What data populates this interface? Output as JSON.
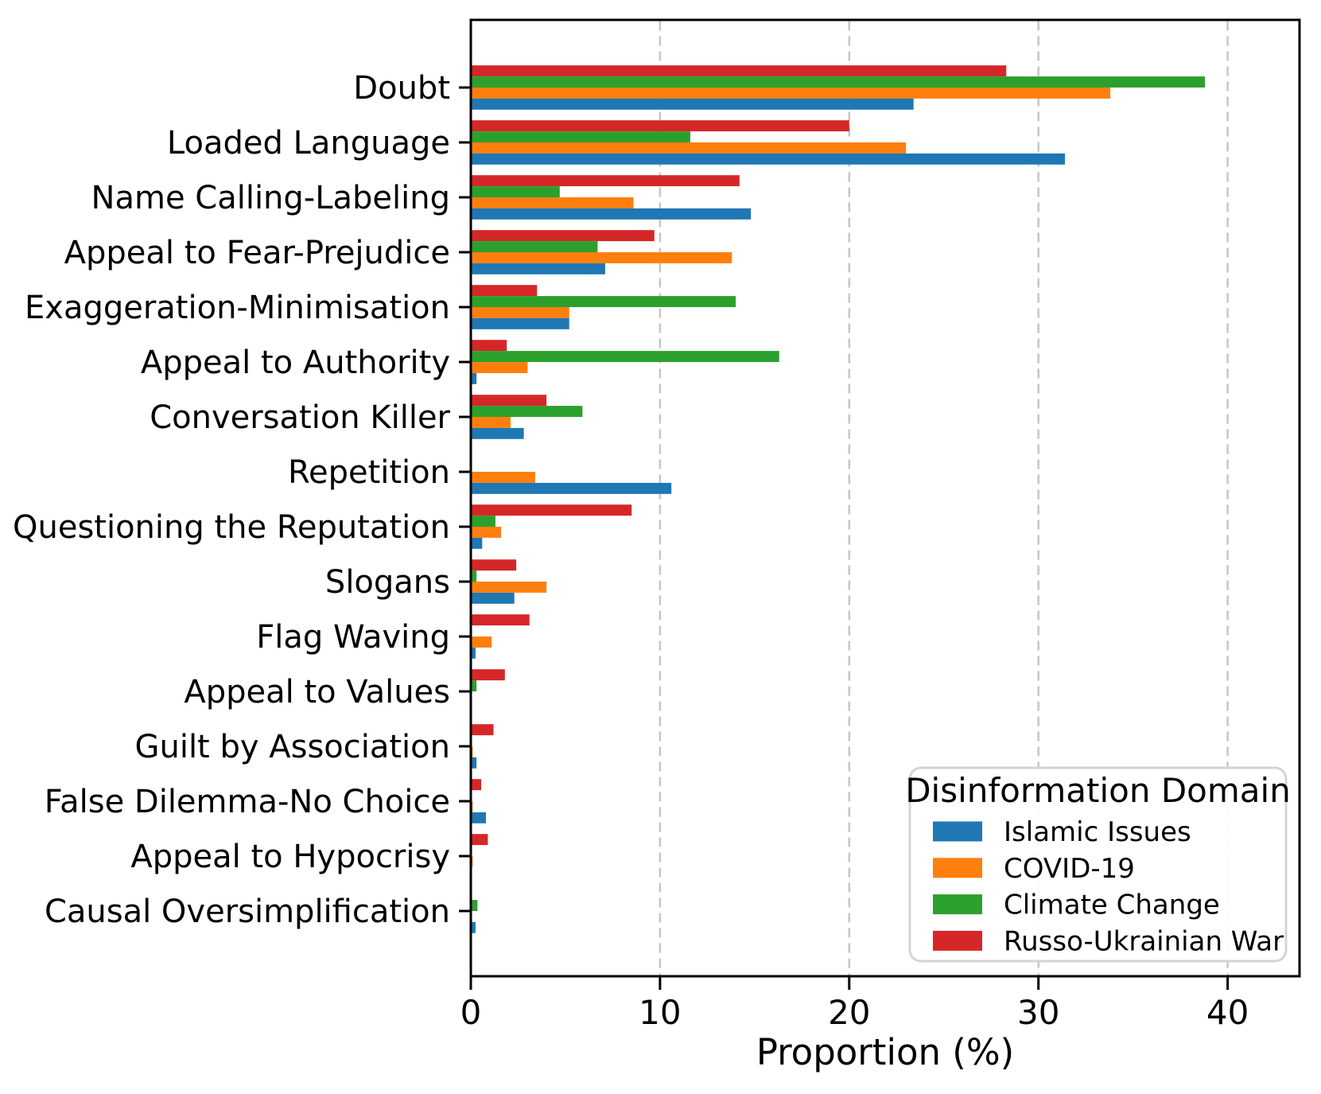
{
  "figure": {
    "background": "#ffffff"
  },
  "chart_data": {
    "type": "bar",
    "orientation": "horizontal",
    "title": "",
    "xlabel": "Proportion (%)",
    "ylabel": "",
    "xlim": [
      0,
      43.8
    ],
    "xticks": [
      0,
      10,
      20,
      30,
      40
    ],
    "grid": "vertical-dashed",
    "grid_color": "#c6c6c6",
    "categories": [
      "Doubt",
      "Loaded Language",
      "Name Calling-Labeling",
      "Appeal to Fear-Prejudice",
      "Exaggeration-Minimisation",
      "Appeal to Authority",
      "Conversation Killer",
      "Repetition",
      "Questioning the Reputation",
      "Slogans",
      "Flag Waving",
      "Appeal to Values",
      "Guilt by Association",
      "False Dilemma-No Choice",
      "Appeal to Hypocrisy",
      "Causal Oversimplification"
    ],
    "series": [
      {
        "name": "Islamic Issues",
        "color": "#1f77b4",
        "values": [
          23.4,
          31.4,
          14.8,
          7.1,
          5.2,
          0.3,
          2.8,
          10.6,
          0.6,
          2.3,
          0.25,
          0,
          0.3,
          0.8,
          0,
          0.25
        ]
      },
      {
        "name": "COVID-19",
        "color": "#ff7f0e",
        "values": [
          33.8,
          23.0,
          8.6,
          13.8,
          5.2,
          3.0,
          2.1,
          3.4,
          1.6,
          4.0,
          1.1,
          0,
          0.1,
          0.1,
          0.1,
          0
        ]
      },
      {
        "name": "Climate Change",
        "color": "#2ca02c",
        "values": [
          38.8,
          11.6,
          4.7,
          6.7,
          14.0,
          16.3,
          5.9,
          0,
          1.3,
          0.3,
          0,
          0.3,
          0,
          0,
          0,
          0.35
        ]
      },
      {
        "name": "Russo-Ukrainian War",
        "color": "#d62728",
        "values": [
          28.3,
          20.0,
          14.2,
          9.7,
          3.5,
          1.9,
          4.0,
          0,
          8.5,
          2.4,
          3.1,
          1.8,
          1.2,
          0.55,
          0.9,
          0
        ]
      }
    ],
    "bar_order_top_to_bottom": [
      "Russo-Ukrainian War",
      "Climate Change",
      "COVID-19",
      "Islamic Issues"
    ],
    "legend": {
      "title": "Disinformation Domain",
      "position": "lower right"
    }
  }
}
